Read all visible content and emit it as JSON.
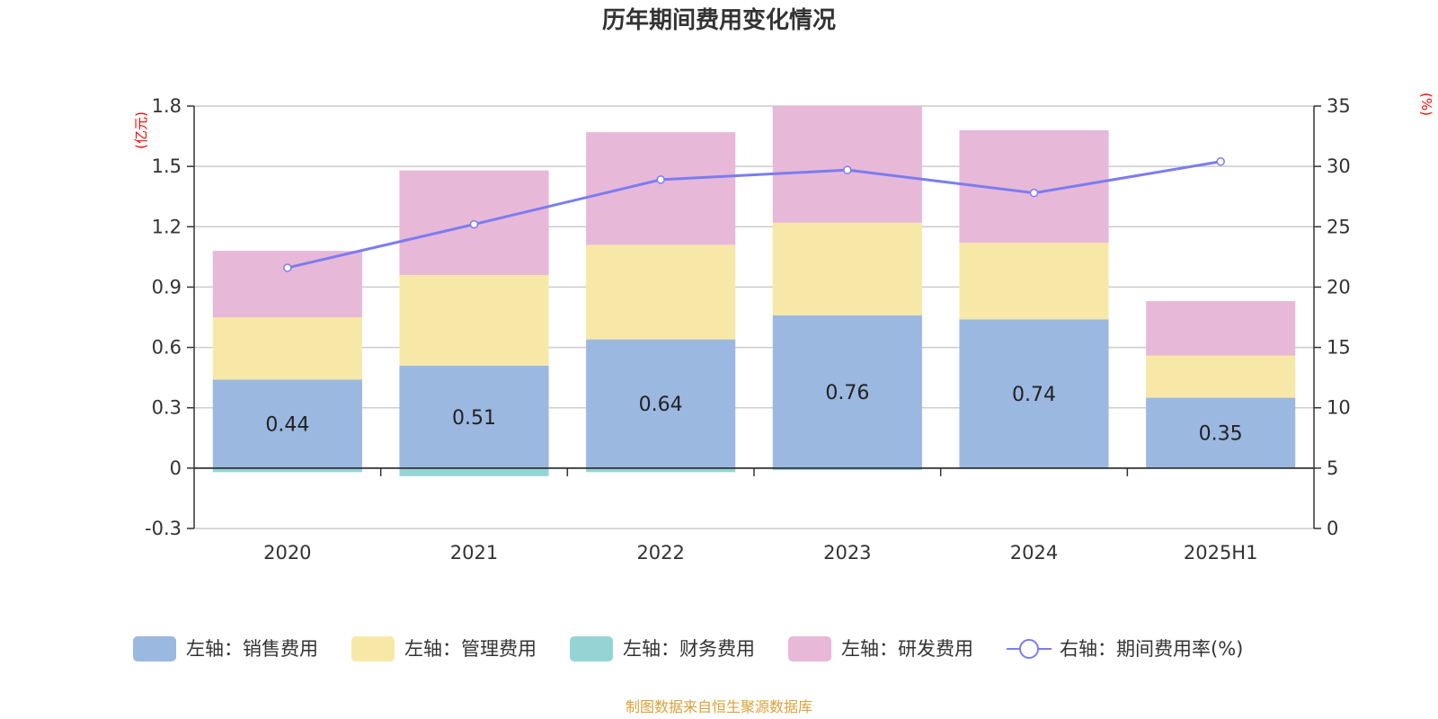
{
  "chart_data": {
    "type": "bar",
    "stacked": true,
    "title": "历年期间费用变化情况",
    "categories": [
      "2020",
      "2021",
      "2022",
      "2023",
      "2024",
      "2025H1"
    ],
    "y_left": {
      "unit": "(亿元)",
      "ylim": [
        -0.3,
        1.8
      ],
      "ticks": [
        "-0.3",
        "0",
        "0.3",
        "0.6",
        "0.9",
        "1.2",
        "1.5",
        "1.8"
      ]
    },
    "y_right": {
      "unit": "(%)",
      "ylim": [
        0,
        35
      ],
      "ticks": [
        "0",
        "5",
        "10",
        "15",
        "20",
        "25",
        "30",
        "35"
      ]
    },
    "series": [
      {
        "name": "左轴：销售费用",
        "color": "#9bb8e0",
        "axis": "left",
        "values": [
          0.44,
          0.51,
          0.64,
          0.76,
          0.74,
          0.35
        ],
        "labels": [
          "0.44",
          "0.51",
          "0.64",
          "0.76",
          "0.74",
          "0.35"
        ]
      },
      {
        "name": "左轴：管理费用",
        "color": "#f8e8a8",
        "axis": "left",
        "values": [
          0.31,
          0.45,
          0.47,
          0.46,
          0.38,
          0.21
        ]
      },
      {
        "name": "左轴：财务费用",
        "color": "#94d4d4",
        "axis": "left",
        "values": [
          -0.02,
          -0.04,
          -0.02,
          -0.01,
          -0.002,
          0
        ]
      },
      {
        "name": "左轴：研发费用",
        "color": "#e8b8d8",
        "axis": "left",
        "values": [
          0.33,
          0.52,
          0.56,
          0.58,
          0.56,
          0.27
        ]
      },
      {
        "name": "右轴：期间费用率(%)",
        "color": "#7b7cf0",
        "axis": "right",
        "type": "line",
        "values": [
          21.6,
          25.2,
          28.9,
          29.7,
          27.8,
          30.4
        ]
      }
    ],
    "grid": true,
    "legend_position": "bottom",
    "source_text": "制图数据来自恒生聚源数据库"
  }
}
